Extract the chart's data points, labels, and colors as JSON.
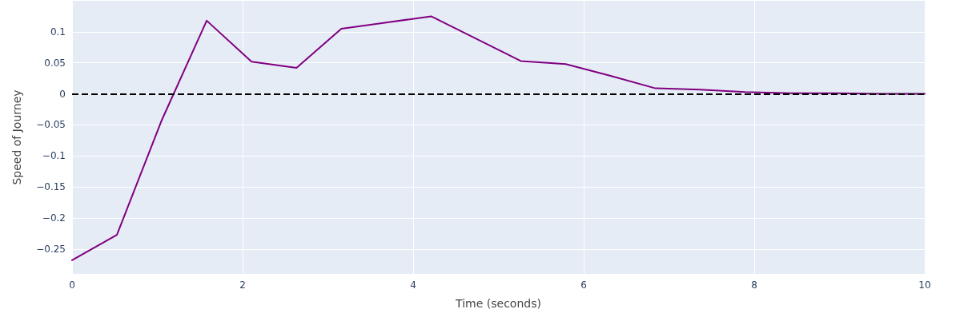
{
  "chart_data": {
    "type": "line",
    "xlabel": "Time (seconds)",
    "ylabel": "Speed of Journey",
    "x": [
      0,
      0.526,
      1.053,
      1.579,
      2.105,
      2.632,
      3.158,
      3.684,
      4.211,
      4.737,
      5.263,
      5.789,
      6.316,
      6.842,
      7.368,
      7.895,
      8.421,
      8.947,
      9.474,
      10
    ],
    "series": [
      {
        "color": "#800080",
        "values": [
          -0.268,
          -0.227,
          -0.042,
          0.118,
          0.052,
          0.042,
          0.105,
          0.115,
          0.125,
          0.089,
          0.053,
          0.048,
          0.029,
          0.009,
          0.007,
          0.003,
          0.001,
          0.001,
          0,
          0
        ]
      }
    ],
    "xlim": [
      0,
      10
    ],
    "xticks": [
      0,
      2,
      4,
      6,
      8,
      10
    ],
    "ylim": [
      -0.29,
      0.15
    ],
    "yticks": [
      -0.25,
      -0.2,
      -0.15,
      -0.1,
      -0.05,
      0,
      0.05,
      0.1
    ],
    "ref_lines": [
      {
        "axis": "y",
        "value": 0,
        "color": "#000000",
        "line_style": "dashed"
      }
    ],
    "grid": true,
    "marker": "none",
    "line_style": "solid"
  }
}
